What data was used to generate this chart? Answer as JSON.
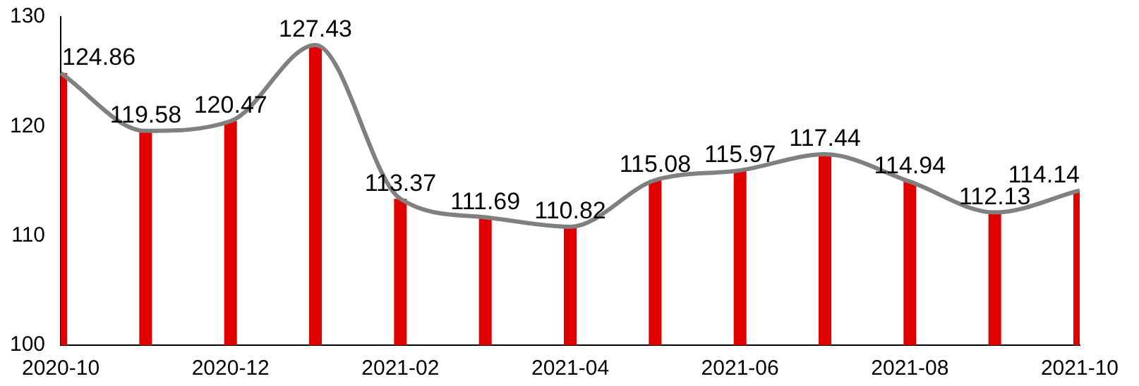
{
  "chart_data": {
    "type": "bar",
    "categories": [
      "2020-10",
      null,
      "2020-12",
      null,
      "2021-02",
      null,
      "2021-04",
      null,
      "2021-06",
      null,
      "2021-08",
      null,
      "2021-10"
    ],
    "series": [
      {
        "color": "#e00000",
        "values": [
          124.86,
          119.58,
          120.47,
          127.43,
          113.37,
          111.69,
          110.82,
          115.08,
          115.97,
          117.44,
          114.94,
          112.13,
          114.14
        ]
      },
      {
        "type": "line",
        "color": "#808080",
        "marker": "none",
        "values": [
          124.86,
          119.58,
          120.47,
          127.43,
          113.37,
          111.69,
          110.82,
          115.08,
          115.97,
          117.44,
          114.94,
          112.13,
          114.14
        ],
        "value_labels": [
          "124.86",
          "119.58",
          "120.47",
          "127.43",
          "113.37",
          "111.69",
          "110.82",
          "115.08",
          "115.97",
          "117.44",
          "114.94",
          "112.13",
          "114.14"
        ]
      }
    ],
    "ylim": [
      100,
      130
    ],
    "yticks": [
      100,
      110,
      120,
      130
    ],
    "grid": false,
    "legend": false
  }
}
